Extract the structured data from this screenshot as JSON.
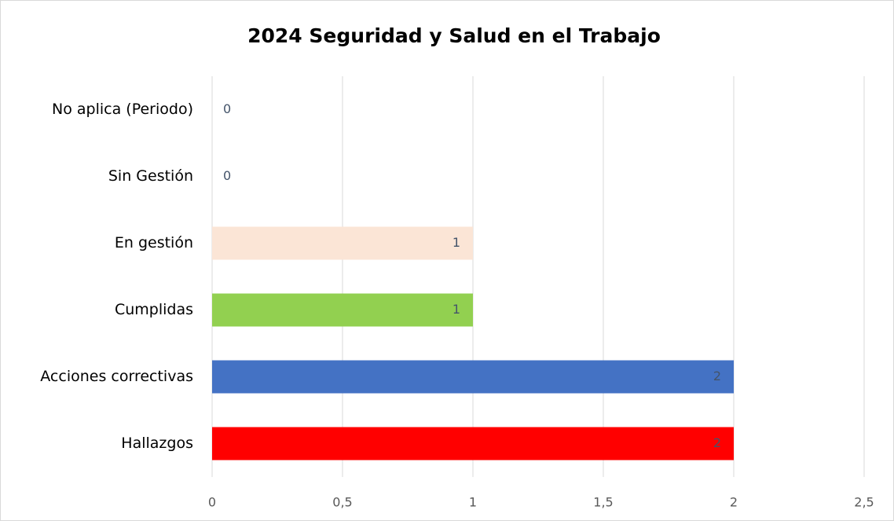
{
  "chart_data": {
    "type": "bar",
    "orientation": "horizontal",
    "title": "2024 Seguridad y Salud en el Trabajo",
    "categories": [
      "No aplica (Periodo)",
      "Sin Gestión",
      "En gestión",
      "Cumplidas",
      "Acciones correctivas",
      "Hallazgos"
    ],
    "values": [
      0,
      0,
      1,
      1,
      2,
      2
    ],
    "colors": [
      "#a5a5a5",
      "#a5a5a5",
      "#fbe5d6",
      "#92d050",
      "#4472c4",
      "#ff0000"
    ],
    "xlim": [
      0,
      2.5
    ],
    "xticks": [
      0,
      {
        "value": 0.5,
        "label": "0,5"
      },
      1,
      {
        "value": 1.5,
        "label": "1,5"
      },
      2,
      {
        "value": 2.5,
        "label": "2,5"
      }
    ],
    "grid": true
  }
}
